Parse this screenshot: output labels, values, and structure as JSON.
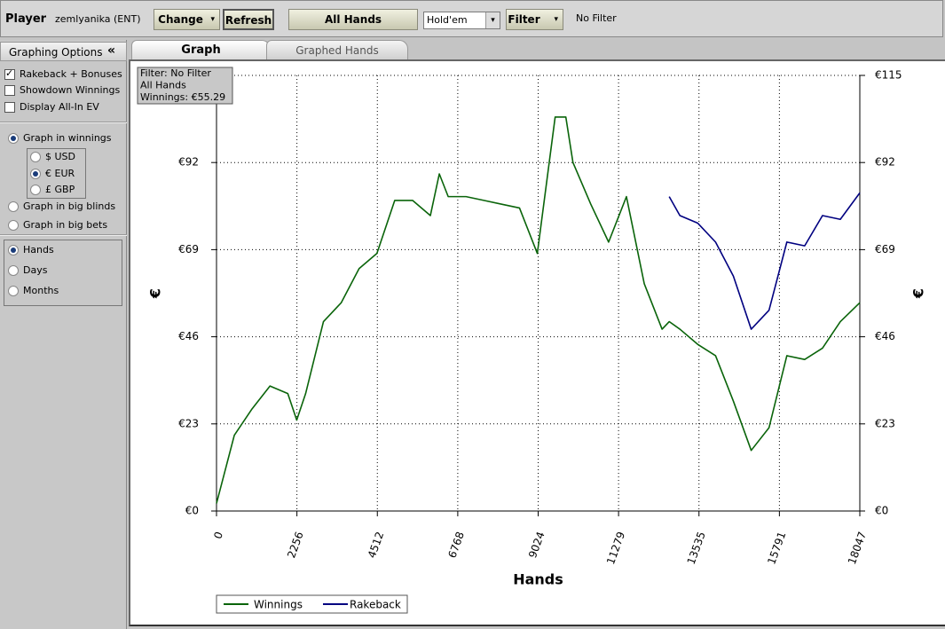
{
  "toolbar": {
    "player_label": "Player",
    "player": "zemlyanika (ENT)",
    "change": "Change",
    "refresh": "Refresh",
    "hands_filter": "All Hands",
    "game": "Hold'em",
    "filter": "Filter",
    "filter_status": "No Filter"
  },
  "sidebar": {
    "title": "Graphing Options",
    "options": [
      {
        "label": "Rakeback + Bonuses",
        "checked": true
      },
      {
        "label": "Showdown Winnings",
        "checked": false
      },
      {
        "label": "Display All-In EV",
        "checked": false
      }
    ],
    "graph_in": [
      {
        "label": "Graph in winnings",
        "selected": true
      },
      {
        "label": "Graph in big blinds",
        "selected": false
      },
      {
        "label": "Graph in big bets",
        "selected": false
      }
    ],
    "currencies": [
      {
        "label": "$ USD",
        "selected": false
      },
      {
        "label": "€ EUR",
        "selected": true
      },
      {
        "label": "£ GBP",
        "selected": false
      }
    ],
    "x_axis": [
      {
        "label": "Hands",
        "selected": true
      },
      {
        "label": "Days",
        "selected": false
      },
      {
        "label": "Months",
        "selected": false
      }
    ]
  },
  "tabs": [
    {
      "label": "Graph",
      "active": true
    },
    {
      "label": "Graphed Hands",
      "active": false
    }
  ],
  "chart_data": {
    "type": "line",
    "info": [
      "Filter: No Filter",
      "All Hands",
      "Winnings: €55.29"
    ],
    "x_label": "Hands",
    "y_label": "€",
    "x": [
      0,
      500,
      1000,
      1500,
      2000,
      2250,
      2500,
      3000,
      3500,
      4000,
      4500,
      5000,
      5500,
      6000,
      6250,
      6500,
      7000,
      7500,
      8000,
      8500,
      9000,
      9500,
      9800,
      10000,
      10500,
      11000,
      11500,
      12000,
      12500,
      12700,
      13000,
      13500,
      14000,
      14500,
      15000,
      15500,
      16000,
      16500,
      17000,
      17500,
      18047
    ],
    "series": [
      {
        "name": "Winnings",
        "color": "#0a640a",
        "values": [
          2,
          20,
          27,
          33,
          31,
          24,
          31,
          50,
          55,
          64,
          68,
          82,
          82,
          78,
          89,
          83,
          83,
          82,
          81,
          80,
          68,
          104,
          104,
          92,
          81,
          71,
          83,
          60,
          48,
          50,
          48,
          44,
          41,
          29,
          16,
          22,
          41,
          40,
          43,
          50,
          55
        ]
      },
      {
        "name": "Rakeback",
        "color": "#000080",
        "values": [
          null,
          null,
          null,
          null,
          null,
          null,
          null,
          null,
          null,
          null,
          null,
          null,
          null,
          null,
          null,
          null,
          null,
          null,
          null,
          null,
          null,
          null,
          null,
          null,
          null,
          null,
          null,
          null,
          null,
          83,
          78,
          76,
          71,
          62,
          48,
          53,
          71,
          70,
          78,
          77,
          84
        ]
      }
    ],
    "xlim": [
      0,
      18047
    ],
    "xticks": [
      0,
      2256,
      4512,
      6768,
      9024,
      11279,
      13535,
      15791,
      18047
    ],
    "ylim": [
      0,
      115
    ],
    "yticks": [
      {
        "value": 0,
        "label": "€0"
      },
      {
        "value": 23,
        "label": "€23"
      },
      {
        "value": 46,
        "label": "€46"
      },
      {
        "value": 69,
        "label": "€69"
      },
      {
        "value": 92,
        "label": "€92"
      },
      {
        "value": 115,
        "label": "€115"
      }
    ],
    "grid": true,
    "legend": "bottom-left"
  }
}
